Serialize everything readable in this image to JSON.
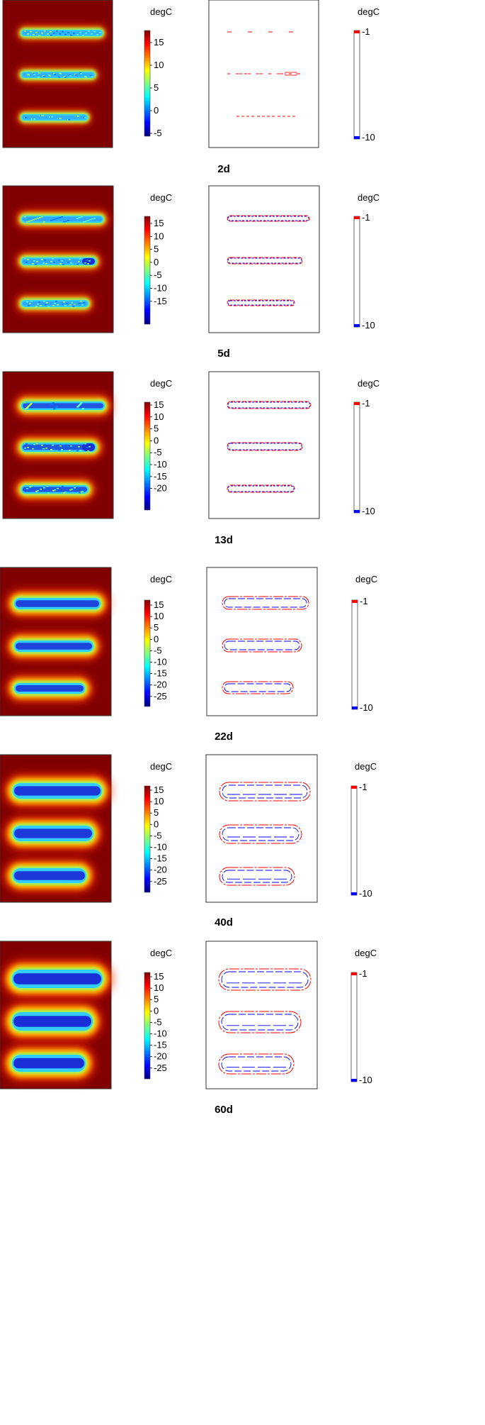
{
  "colors": {
    "background_red": "#7f0000",
    "contour_hot": "#ff0000",
    "contour_cold": "#0000ff",
    "frame": "#333333"
  },
  "unit_label": "degC",
  "contour_colorbar": {
    "top_label": "-1",
    "bottom_label": "-10"
  },
  "panels": [
    {
      "day_label": "2d",
      "ticks": [
        "15",
        "10",
        "5",
        "0",
        "-5"
      ]
    },
    {
      "day_label": "5d",
      "ticks": [
        "15",
        "10",
        "5",
        "0",
        "-5",
        "-10",
        "-15"
      ]
    },
    {
      "day_label": "13d",
      "ticks": [
        "15",
        "10",
        "5",
        "0",
        "-5",
        "-10",
        "-15",
        "-20"
      ]
    },
    {
      "day_label": "22d",
      "ticks": [
        "15",
        "10",
        "5",
        "0",
        "-5",
        "-10",
        "-15",
        "-20",
        "-25"
      ]
    },
    {
      "day_label": "40d",
      "ticks": [
        "15",
        "10",
        "5",
        "0",
        "-5",
        "-10",
        "-15",
        "-20",
        "-25"
      ]
    },
    {
      "day_label": "60d",
      "ticks": [
        "15",
        "10",
        "5",
        "0",
        "-5",
        "-10",
        "-15",
        "-20",
        "-25"
      ]
    }
  ]
}
